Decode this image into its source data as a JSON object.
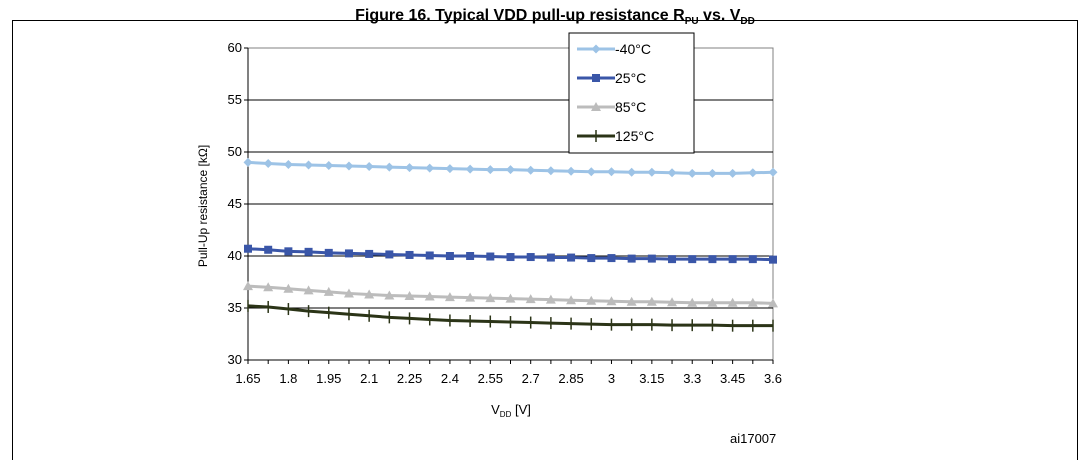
{
  "header": {
    "caption_main": "Figure 16. Typical VDD pull-up resistance R",
    "caption_sub": "PU",
    "caption_tail": " vs. V",
    "caption_tail_sub": "DD"
  },
  "chart_data": {
    "type": "line",
    "title": "",
    "xlabel_main": "V",
    "xlabel_sub": "DD",
    "xlabel_unit": " [V]",
    "ylabel": "Pull-Up resistance [kΩ]",
    "ylim": [
      30,
      60
    ],
    "yticks": [
      30,
      35,
      40,
      45,
      50,
      55,
      60
    ],
    "x": [
      1.65,
      1.725,
      1.8,
      1.875,
      1.95,
      2.025,
      2.1,
      2.175,
      2.25,
      2.325,
      2.4,
      2.475,
      2.55,
      2.625,
      2.7,
      2.775,
      2.85,
      2.925,
      3.0,
      3.075,
      3.15,
      3.225,
      3.3,
      3.375,
      3.45,
      3.525,
      3.6
    ],
    "xtick_labels": [
      "1.65",
      "1.8",
      "1.95",
      "2.1",
      "2.25",
      "2.4",
      "2.55",
      "2.7",
      "2.85",
      "3",
      "3.15",
      "3.3",
      "3.45",
      "3.6"
    ],
    "grid": "horizontal",
    "legend_position": "top-right",
    "series": [
      {
        "name": "-40°C",
        "color": "#9dc3e6",
        "marker": "diamond",
        "values": [
          49.0,
          48.9,
          48.8,
          48.75,
          48.7,
          48.65,
          48.6,
          48.55,
          48.5,
          48.45,
          48.4,
          48.35,
          48.3,
          48.3,
          48.25,
          48.2,
          48.15,
          48.1,
          48.1,
          48.05,
          48.05,
          48.0,
          47.95,
          47.95,
          47.95,
          48.0,
          48.05
        ]
      },
      {
        "name": "25°C",
        "color": "#3a56a8",
        "marker": "square",
        "values": [
          40.7,
          40.6,
          40.45,
          40.4,
          40.3,
          40.25,
          40.2,
          40.15,
          40.1,
          40.05,
          40.0,
          40.0,
          39.95,
          39.9,
          39.9,
          39.85,
          39.85,
          39.8,
          39.8,
          39.75,
          39.75,
          39.7,
          39.7,
          39.7,
          39.7,
          39.7,
          39.65
        ]
      },
      {
        "name": "85°C",
        "color": "#bcbcbc",
        "marker": "triangle",
        "values": [
          37.1,
          37.0,
          36.85,
          36.7,
          36.55,
          36.4,
          36.3,
          36.2,
          36.15,
          36.1,
          36.05,
          36.0,
          35.95,
          35.9,
          35.85,
          35.8,
          35.75,
          35.7,
          35.65,
          35.6,
          35.6,
          35.55,
          35.5,
          35.5,
          35.5,
          35.5,
          35.45
        ]
      },
      {
        "name": "125°C",
        "color": "#2b3417",
        "marker": "plus",
        "values": [
          35.2,
          35.1,
          34.9,
          34.7,
          34.55,
          34.4,
          34.25,
          34.1,
          34.0,
          33.9,
          33.8,
          33.75,
          33.7,
          33.65,
          33.6,
          33.55,
          33.5,
          33.45,
          33.4,
          33.4,
          33.4,
          33.35,
          33.35,
          33.35,
          33.3,
          33.3,
          33.3
        ]
      }
    ],
    "annotation": "ai17007"
  }
}
